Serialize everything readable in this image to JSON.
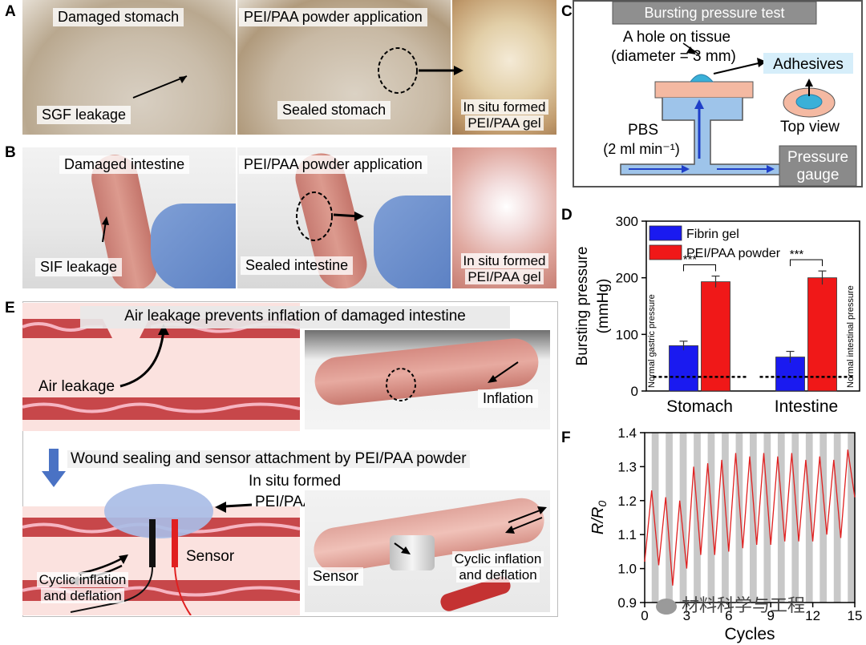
{
  "panels": {
    "a": {
      "label": "A",
      "cap_damaged": "Damaged stomach",
      "cap_powder": "PEI/PAA powder application",
      "cap_leak": "SGF leakage",
      "cap_sealed": "Sealed stomach",
      "cap_gel_1": "In situ formed",
      "cap_gel_2": "PEI/PAA gel"
    },
    "b": {
      "label": "B",
      "cap_damaged": "Damaged intestine",
      "cap_powder": "PEI/PAA powder application",
      "cap_leak": "SIF leakage",
      "cap_sealed": "Sealed intestine",
      "cap_gel_1": "In situ formed",
      "cap_gel_2": "PEI/PAA gel"
    },
    "c": {
      "label": "C",
      "title": "Bursting pressure test",
      "hole_1": "A hole on tissue",
      "hole_2": "(diameter = 3 mm)",
      "adhesives": "Adhesives",
      "top_view": "Top view",
      "pbs_1": "PBS",
      "pbs_2": "(2 ml min⁻¹)",
      "gauge_1": "Pressure",
      "gauge_2": "gauge"
    },
    "e": {
      "label": "E",
      "title": "Air leakage prevents inflation of damaged intestine",
      "air": "Air leakage",
      "inflation": "Inflation",
      "sealing": "Wound sealing and sensor attachment by PEI/PAA powder",
      "hydrogel_1": "In situ formed",
      "hydrogel_2": "PEI/PAA hydrogel",
      "sensor": "Sensor",
      "cyc_1": "Cyclic inflation",
      "cyc_2": "and deflation",
      "photo_sensor": "Sensor",
      "photo_cyc_1": "Cyclic inflation",
      "photo_cyc_2": "and deflation"
    }
  },
  "watermark": "材料科学与工程",
  "chart_data": [
    {
      "panel": "D",
      "type": "bar",
      "categories": [
        "Stomach",
        "Intestine"
      ],
      "series": [
        {
          "name": "Fibrin gel",
          "color": "#1a1af0",
          "values": [
            80,
            60
          ],
          "errors": [
            8,
            10
          ]
        },
        {
          "name": "PEI/PAA powder",
          "color": "#f01818",
          "values": [
            193,
            200
          ],
          "errors": [
            10,
            12
          ]
        }
      ],
      "ylabel_1": "Bursting pressure",
      "ylabel_2": "(mmHg)",
      "ylim": [
        0,
        300
      ],
      "yticks": [
        0,
        100,
        200,
        300
      ],
      "significance": [
        "***",
        "***"
      ],
      "baselines": [
        {
          "category": "Stomach",
          "value": 25,
          "label": "Normal gastric pressure"
        },
        {
          "category": "Intestine",
          "value": 25,
          "label": "Normal intestinal pressure"
        }
      ]
    },
    {
      "panel": "F",
      "type": "line",
      "xlabel": "Cycles",
      "ylabel": "R/R0",
      "xlim": [
        0,
        15
      ],
      "ylim": [
        0.9,
        1.4
      ],
      "xticks": [
        0,
        3,
        6,
        9,
        12,
        15
      ],
      "yticks": [
        0.9,
        1.0,
        1.1,
        1.2,
        1.3,
        1.4
      ],
      "x": [
        0,
        0.5,
        1,
        1.5,
        2,
        2.5,
        3,
        3.5,
        4,
        4.5,
        5,
        5.5,
        6,
        6.5,
        7,
        7.5,
        8,
        8.5,
        9,
        9.5,
        10,
        10.5,
        11,
        11.5,
        12,
        12.5,
        13,
        13.5,
        14,
        14.5,
        15
      ],
      "y": [
        1.02,
        1.23,
        1.01,
        1.21,
        0.95,
        1.2,
        1.0,
        1.3,
        1.04,
        1.31,
        1.04,
        1.32,
        1.05,
        1.34,
        1.06,
        1.33,
        1.07,
        1.34,
        1.07,
        1.33,
        1.08,
        1.34,
        1.08,
        1.32,
        1.08,
        1.33,
        1.1,
        1.32,
        1.09,
        1.35,
        1.21
      ]
    }
  ]
}
